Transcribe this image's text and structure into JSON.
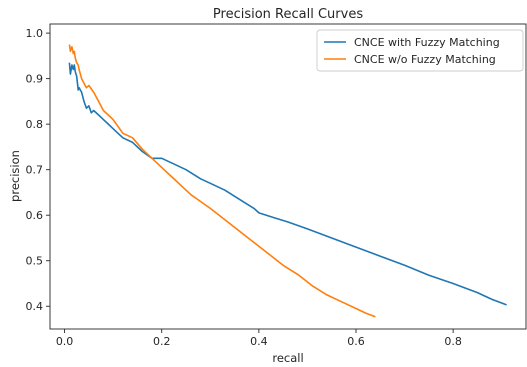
{
  "chart_data": {
    "type": "line",
    "title": "Precision Recall Curves",
    "xlabel": "recall",
    "ylabel": "precision",
    "xlim": [
      -0.03,
      0.95
    ],
    "ylim": [
      0.35,
      1.02
    ],
    "xticks": [
      0.0,
      0.2,
      0.4,
      0.6,
      0.8
    ],
    "xtick_labels": [
      "0.0",
      "0.2",
      "0.4",
      "0.6",
      "0.8"
    ],
    "yticks": [
      0.4,
      0.5,
      0.6,
      0.7,
      0.8,
      0.9,
      1.0
    ],
    "ytick_labels": [
      "0.4",
      "0.5",
      "0.6",
      "0.7",
      "0.8",
      "0.9",
      "1.0"
    ],
    "grid": false,
    "legend_position": "top-right",
    "series": [
      {
        "name": "CNCE with Fuzzy Matching",
        "color": "#1f77b4",
        "x": [
          0.01,
          0.012,
          0.015,
          0.018,
          0.02,
          0.022,
          0.025,
          0.028,
          0.03,
          0.035,
          0.04,
          0.045,
          0.05,
          0.055,
          0.06,
          0.07,
          0.08,
          0.09,
          0.1,
          0.11,
          0.12,
          0.14,
          0.16,
          0.18,
          0.2,
          0.22,
          0.25,
          0.28,
          0.3,
          0.33,
          0.36,
          0.39,
          0.4,
          0.43,
          0.46,
          0.5,
          0.55,
          0.6,
          0.65,
          0.7,
          0.75,
          0.8,
          0.85,
          0.88,
          0.91
        ],
        "y": [
          0.935,
          0.91,
          0.93,
          0.92,
          0.93,
          0.915,
          0.905,
          0.875,
          0.88,
          0.87,
          0.85,
          0.835,
          0.84,
          0.825,
          0.83,
          0.82,
          0.81,
          0.8,
          0.79,
          0.78,
          0.77,
          0.76,
          0.74,
          0.725,
          0.725,
          0.715,
          0.7,
          0.68,
          0.67,
          0.655,
          0.635,
          0.615,
          0.605,
          0.595,
          0.585,
          0.57,
          0.55,
          0.53,
          0.51,
          0.49,
          0.468,
          0.45,
          0.43,
          0.415,
          0.403
        ]
      },
      {
        "name": "CNCE w/o Fuzzy Matching",
        "color": "#ff7f0e",
        "x": [
          0.01,
          0.012,
          0.015,
          0.018,
          0.02,
          0.022,
          0.025,
          0.028,
          0.03,
          0.035,
          0.04,
          0.045,
          0.05,
          0.06,
          0.07,
          0.08,
          0.09,
          0.1,
          0.12,
          0.14,
          0.16,
          0.18,
          0.2,
          0.22,
          0.24,
          0.26,
          0.28,
          0.3,
          0.33,
          0.36,
          0.39,
          0.42,
          0.45,
          0.48,
          0.51,
          0.54,
          0.57,
          0.6,
          0.62,
          0.64
        ],
        "y": [
          0.975,
          0.96,
          0.97,
          0.955,
          0.96,
          0.945,
          0.935,
          0.93,
          0.92,
          0.9,
          0.89,
          0.88,
          0.885,
          0.87,
          0.85,
          0.83,
          0.82,
          0.81,
          0.78,
          0.77,
          0.745,
          0.725,
          0.705,
          0.685,
          0.665,
          0.645,
          0.63,
          0.615,
          0.59,
          0.565,
          0.54,
          0.515,
          0.49,
          0.47,
          0.445,
          0.425,
          0.41,
          0.395,
          0.385,
          0.377
        ]
      }
    ]
  }
}
